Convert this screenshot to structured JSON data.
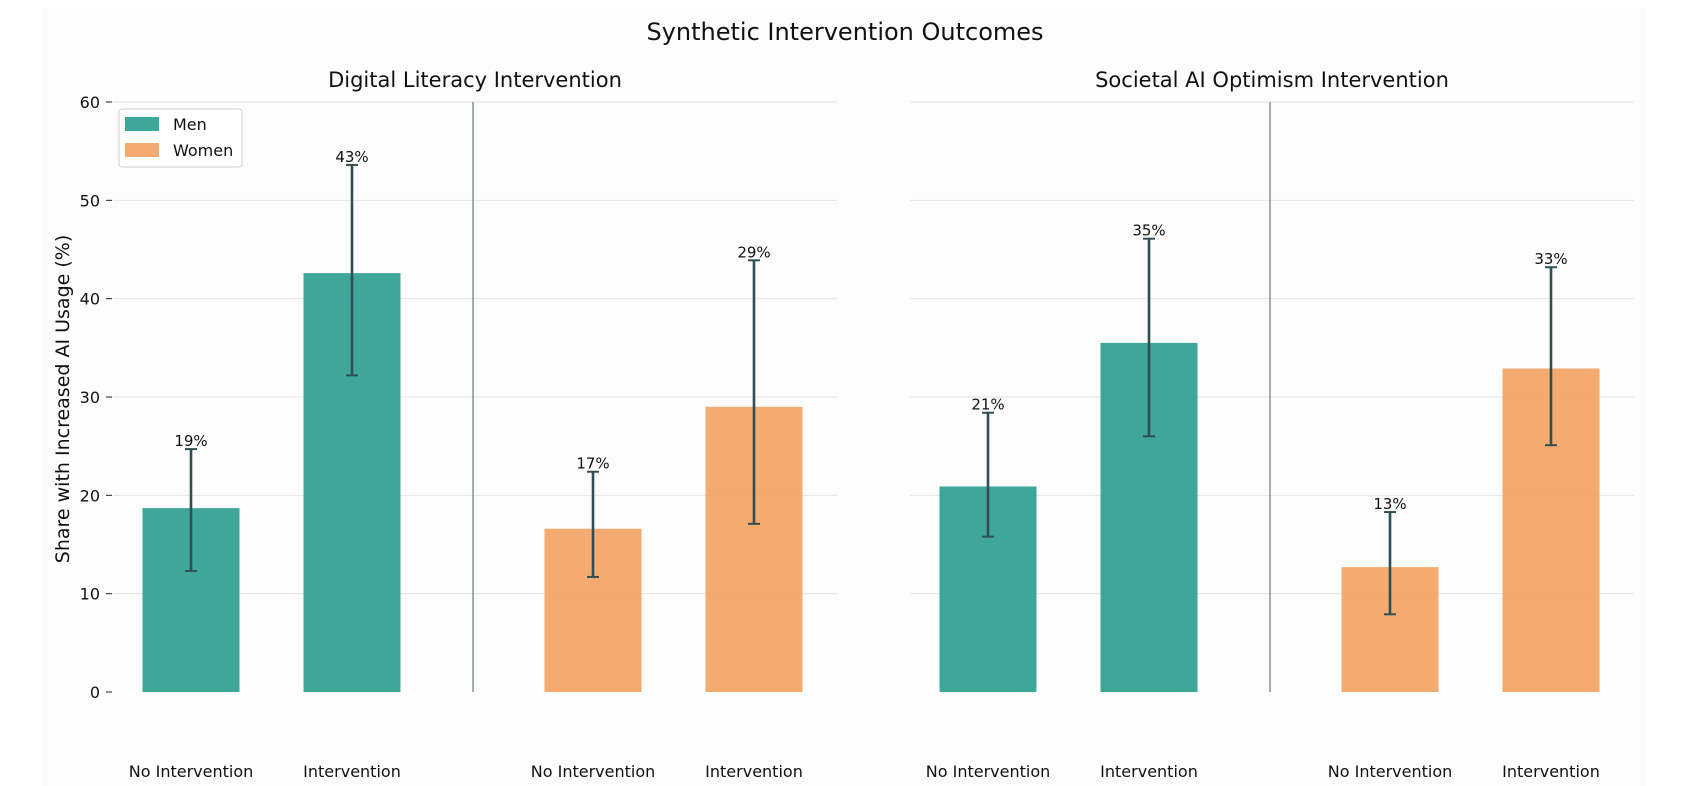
{
  "chart_data": {
    "title": "Synthetic Intervention Outcomes",
    "ylabel": "Share with Increased AI Usage (%)",
    "ylim": [
      0,
      60
    ],
    "yticks": [
      "0",
      "10",
      "20",
      "30",
      "40",
      "50",
      "60"
    ],
    "legend": {
      "position": "top-left",
      "entries": [
        {
          "label": "Men",
          "color": "#2a9d8f"
        },
        {
          "label": "Women",
          "color": "#f4a261"
        }
      ]
    },
    "panels": [
      {
        "type": "bar",
        "title": "Digital Literacy Intervention",
        "bars": [
          {
            "group": "Men",
            "condition": "No Intervention",
            "value": 18.7,
            "ci": [
              12.3,
              24.7
            ],
            "label": "19%",
            "color": "#2a9d8f"
          },
          {
            "group": "Men",
            "condition": "Intervention",
            "value": 42.6,
            "ci": [
              32.2,
              53.6
            ],
            "label": "43%",
            "color": "#2a9d8f"
          },
          {
            "group": "Women",
            "condition": "No Intervention",
            "value": 16.6,
            "ci": [
              11.7,
              22.4
            ],
            "label": "17%",
            "color": "#f4a261"
          },
          {
            "group": "Women",
            "condition": "Intervention",
            "value": 29.0,
            "ci": [
              17.1,
              43.9
            ],
            "label": "29%",
            "color": "#f4a261"
          }
        ]
      },
      {
        "type": "bar",
        "title": "Societal AI Optimism Intervention",
        "bars": [
          {
            "group": "Men",
            "condition": "No Intervention",
            "value": 20.9,
            "ci": [
              15.8,
              28.4
            ],
            "label": "21%",
            "color": "#2a9d8f"
          },
          {
            "group": "Men",
            "condition": "Intervention",
            "value": 35.5,
            "ci": [
              26.0,
              46.1
            ],
            "label": "35%",
            "color": "#2a9d8f"
          },
          {
            "group": "Women",
            "condition": "No Intervention",
            "value": 12.7,
            "ci": [
              7.9,
              18.3
            ],
            "label": "13%",
            "color": "#f4a261"
          },
          {
            "group": "Women",
            "condition": "Intervention",
            "value": 32.9,
            "ci": [
              25.1,
              43.2
            ],
            "label": "33%",
            "color": "#f4a261"
          }
        ]
      }
    ]
  }
}
